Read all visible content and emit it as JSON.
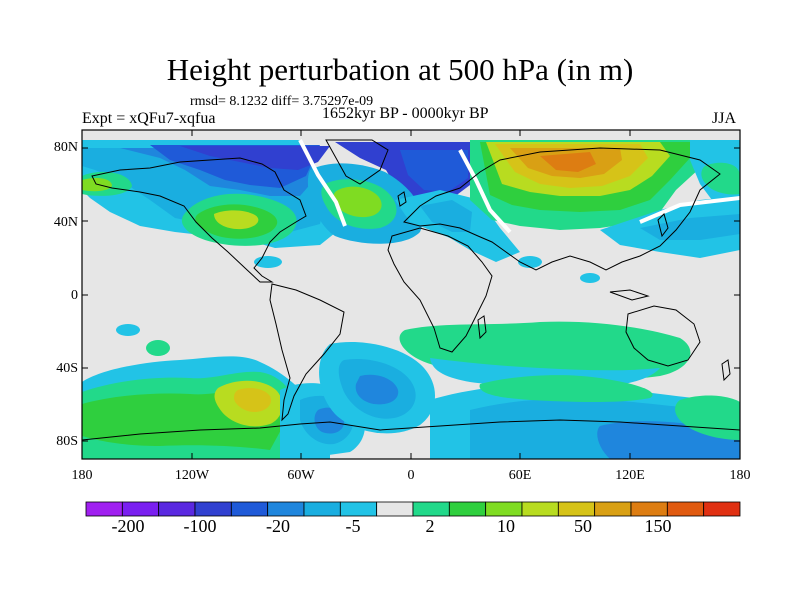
{
  "title": "Height perturbation at 500 hPa (in m)",
  "stats": "rmsd= 8.1232 diff= 3.75297e-09",
  "experiment": "Expt = xQFu7-xqfua",
  "period": "1652kyr BP - 0000kyr BP",
  "season": "JJA",
  "y_ticks": [
    "80N",
    "40N",
    "0",
    "40S",
    "80S"
  ],
  "x_ticks": [
    "180",
    "120W",
    "60W",
    "0",
    "60E",
    "120E",
    "180"
  ],
  "colorbar": {
    "labels": [
      "-200",
      "-100",
      "-20",
      "-5",
      "2",
      "10",
      "50",
      "150"
    ],
    "colors": [
      "#a020f0",
      "#7a1ff0",
      "#5a28e0",
      "#3040d0",
      "#1f5ad8",
      "#1f86dd",
      "#1aaee0",
      "#22c3e6",
      "#e6e6e6",
      "#22d98a",
      "#2fcf3e",
      "#7fdc22",
      "#b8dc20",
      "#d6c318",
      "#d9a014",
      "#dd7d12",
      "#e05a10",
      "#e03012"
    ]
  },
  "colors": {
    "land_no_change": "#e6e6e6",
    "coastline": "#000000"
  }
}
